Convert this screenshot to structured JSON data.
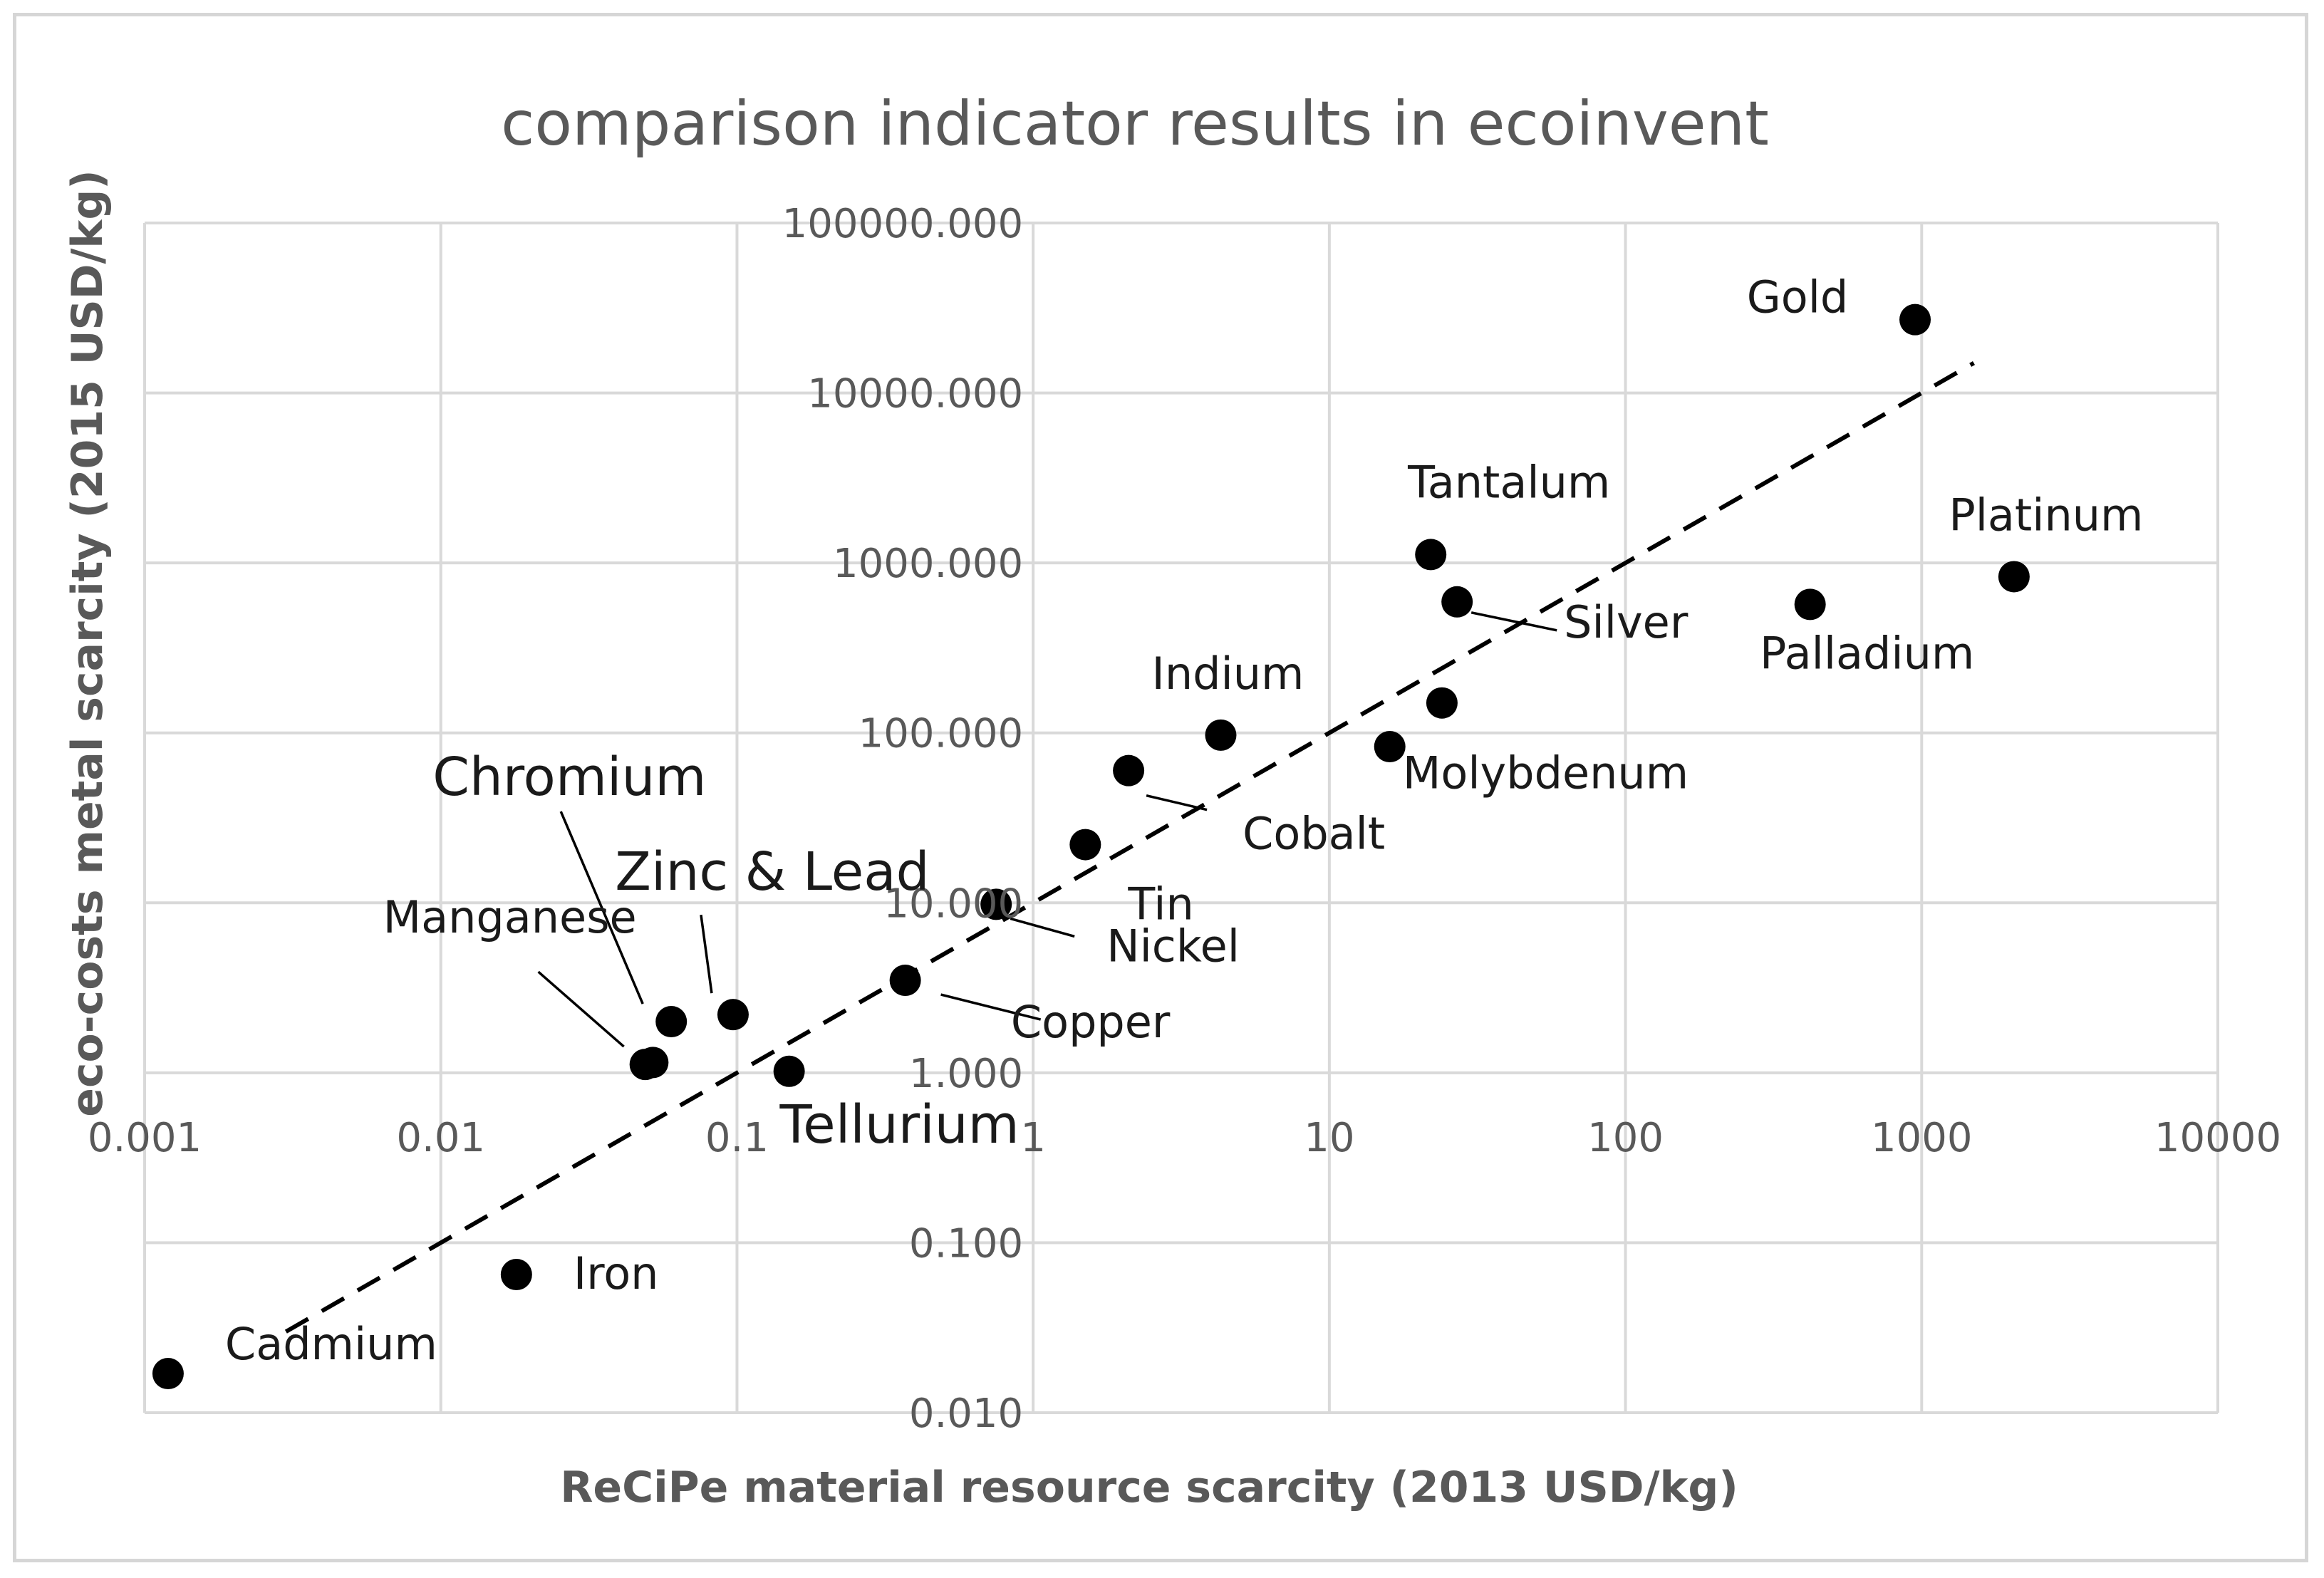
{
  "chart_data": {
    "type": "scatter",
    "title": "comparison indicator results in ecoinvent",
    "xlabel": "ReCiPe material resource scarcity (2013 USD/kg)",
    "ylabel": "eco-costs metal scarcity (2015 USD/kg)",
    "x_scale": "log",
    "y_scale": "log",
    "xlim": [
      0.001,
      10000
    ],
    "ylim": [
      0.01,
      100000
    ],
    "x_ticks": [
      "0.001",
      "0.01",
      "0.1",
      "1",
      "10",
      "100",
      "1000",
      "10000"
    ],
    "y_ticks": [
      "0.010",
      "0.100",
      "1.000",
      "10.000",
      "100.000",
      "1000.000",
      "10000.000",
      "100000.000"
    ],
    "grid": true,
    "legend": "none",
    "points": [
      {
        "label": "Gold",
        "x": 950,
        "y": 27000
      },
      {
        "label": "Platinum",
        "x": 2050,
        "y": 830
      },
      {
        "label": "Palladium",
        "x": 420,
        "y": 570
      },
      {
        "label": "Tantalum",
        "x": 22,
        "y": 1120
      },
      {
        "label": "Silver",
        "x": 27,
        "y": 590
      },
      {
        "label": "Molybdenum",
        "x": 24,
        "y": 150
      },
      {
        "label": "Indium",
        "x": 4.3,
        "y": 97
      },
      {
        "label": "Cobalt",
        "x": 2.1,
        "y": 60
      },
      {
        "label": "Tin",
        "x": 1.5,
        "y": 22
      },
      {
        "label": "Nickel",
        "x": 0.75,
        "y": 9.8
      },
      {
        "label": "Copper",
        "x": 0.37,
        "y": 3.5
      },
      {
        "label": "Tellurium",
        "x": 0.15,
        "y": 1.02
      },
      {
        "label": "Zinc & Lead",
        "x": 0.097,
        "y": 2.2
      },
      {
        "label": "Chromium",
        "x": 0.06,
        "y": 2.0
      },
      {
        "label": "Manganese",
        "x": 0.049,
        "y": 1.12
      },
      {
        "label": "Manganese",
        "x": 0.052,
        "y": 1.15
      },
      {
        "label": "Iron",
        "x": 0.018,
        "y": 0.065
      },
      {
        "label": "Cadmium",
        "x": 0.0012,
        "y": 0.017
      }
    ],
    "extra_points": [
      {
        "x": 16,
        "y": 83
      }
    ],
    "trendline": {
      "style": "dashed",
      "from": {
        "x": 0.003,
        "y": 0.03
      },
      "to": {
        "x": 1500,
        "y": 15000
      }
    }
  }
}
